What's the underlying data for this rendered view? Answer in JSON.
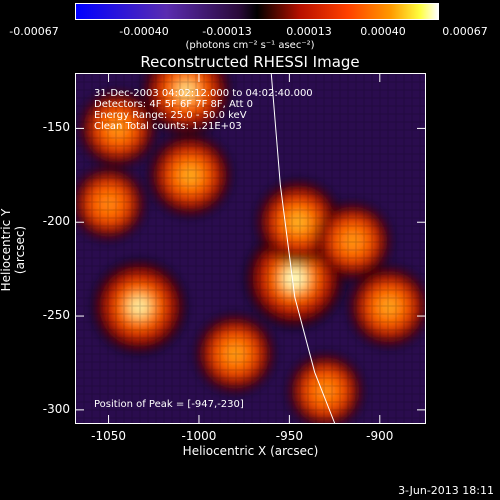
{
  "colorbar": {
    "ticks": [
      "-0.00067",
      "-0.00040",
      "-0.00013",
      "0.00013",
      "0.00040",
      "0.00067"
    ],
    "units": "(photons cm⁻² s⁻¹ asec⁻²)"
  },
  "chart_data": {
    "type": "heatmap",
    "title": "Reconstructed RHESSI Image",
    "xlabel": "Heliocentric X (arcsec)",
    "ylabel": "Heliocentric Y (arcsec)",
    "xlim": [
      -1068,
      -875
    ],
    "ylim": [
      -307,
      -121
    ],
    "xticks": [
      -1050,
      -1000,
      -950,
      -900
    ],
    "yticks": [
      -150,
      -200,
      -250,
      -300
    ],
    "color_range": [
      -0.00067,
      0.00067
    ],
    "colormap": "blue-purple-black-red-orange-yellow-white",
    "grid": false,
    "peaks": [
      {
        "x": -947,
        "y": -230,
        "level": 1.0
      },
      {
        "x": -1033,
        "y": -245,
        "level": 0.85
      },
      {
        "x": -1007,
        "y": -130,
        "level": 0.7
      },
      {
        "x": -945,
        "y": -200,
        "level": 0.6
      },
      {
        "x": -1005,
        "y": -175,
        "level": 0.55
      },
      {
        "x": -895,
        "y": -245,
        "level": 0.5
      },
      {
        "x": -980,
        "y": -270,
        "level": 0.45
      },
      {
        "x": -915,
        "y": -210,
        "level": 0.4
      },
      {
        "x": -1045,
        "y": -150,
        "level": 0.4
      },
      {
        "x": -930,
        "y": -290,
        "level": 0.35
      },
      {
        "x": -1050,
        "y": -190,
        "level": 0.3
      }
    ],
    "limb_curve": [
      [
        -960,
        -121
      ],
      [
        -955,
        -180
      ],
      [
        -947,
        -240
      ],
      [
        -936,
        -280
      ],
      [
        -925,
        -307
      ]
    ],
    "annotations": [
      "31-Dec-2003 04:02:12.000 to 04:02:40.000",
      "Detectors: 4F 5F 6F 7F 8F, Att 0",
      "Energy Range: 25.0 - 50.0 keV",
      "Clean     Total counts: 1.21E+03"
    ],
    "peak_label": "Position of Peak = [-947,-230]"
  },
  "footer": {
    "date": "3-Jun-2013 18:11"
  }
}
